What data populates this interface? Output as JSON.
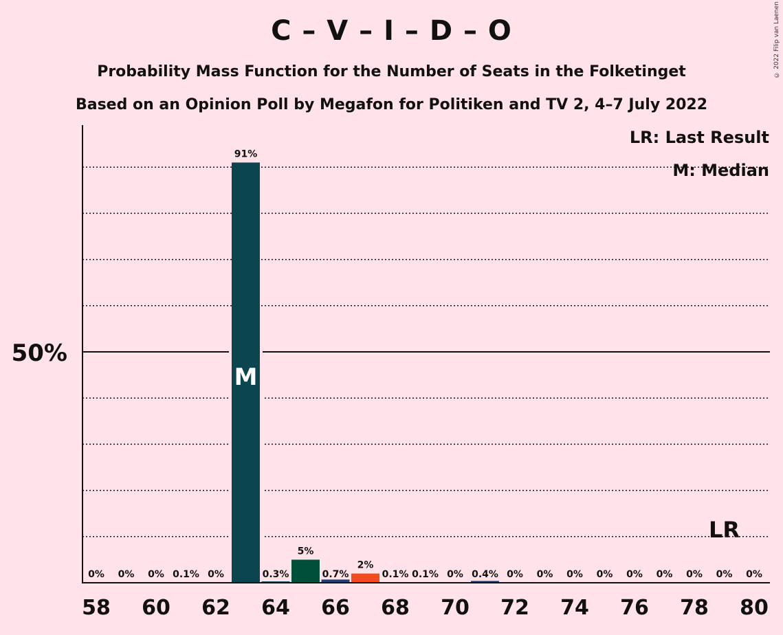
{
  "title": "C – V – I – D – O",
  "subtitle_1": "Probability Mass Function for the Number of Seats in the Folketinget",
  "subtitle_2": "Based on an Opinion Poll by Megafon for Politiken and TV 2, 4–7 July 2022",
  "copyright": "© 2022 Filip van Laenen",
  "legend": {
    "last_result": "LR: Last Result",
    "median": "M: Median"
  },
  "colors": {
    "background": "#FFE3E8",
    "main_bar": "#0A4550",
    "alt_bar_1": "#004F3A",
    "alt_bar_2": "#1F3F7A",
    "alt_bar_3": "#F24A1C"
  },
  "chart_data": {
    "type": "bar",
    "x": [
      58,
      59,
      60,
      61,
      62,
      63,
      64,
      65,
      66,
      67,
      68,
      69,
      70,
      71,
      72,
      73,
      74,
      75,
      76,
      77,
      78,
      79,
      80
    ],
    "values": [
      0,
      0,
      0,
      0.1,
      0,
      91,
      0.3,
      5,
      0.7,
      2,
      0.1,
      0.1,
      0,
      0.4,
      0,
      0,
      0,
      0,
      0,
      0,
      0,
      0,
      0
    ],
    "value_labels": [
      "0%",
      "0%",
      "0%",
      "0.1%",
      "0%",
      "91%",
      "0.3%",
      "5%",
      "0.7%",
      "2%",
      "0.1%",
      "0.1%",
      "0%",
      "0.4%",
      "0%",
      "0%",
      "0%",
      "0%",
      "0%",
      "0%",
      "0%",
      "0%",
      "0%"
    ],
    "bar_colors": {
      "65": "#004F3A",
      "66": "#1F3F7A",
      "67": "#F24A1C",
      "71": "#1F3F7A"
    },
    "x_tick_labels": [
      "58",
      "60",
      "62",
      "64",
      "66",
      "68",
      "70",
      "72",
      "74",
      "76",
      "78",
      "80"
    ],
    "y_tick_label": "50%",
    "y_tick_value": 50,
    "ylim": [
      0,
      100
    ],
    "gridlines": [
      10,
      20,
      30,
      40,
      60,
      70,
      80,
      90
    ],
    "median": 63,
    "median_marker": "M",
    "last_result": 79,
    "last_result_marker": "LR"
  }
}
